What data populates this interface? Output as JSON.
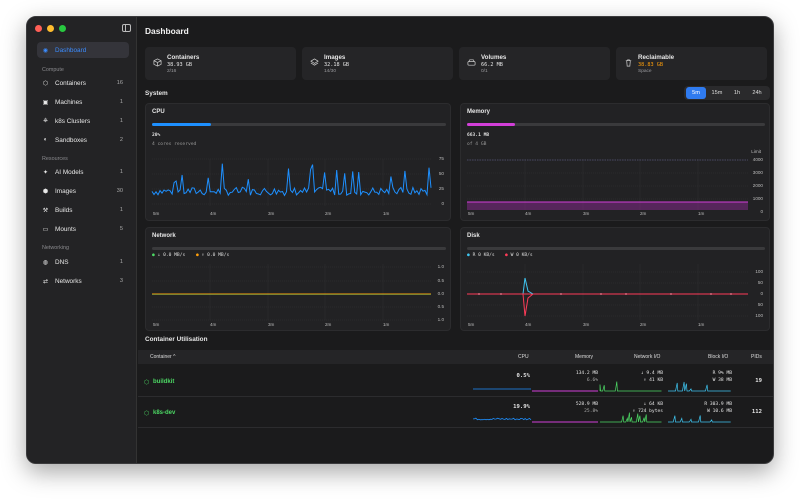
{
  "window": {
    "title": "Dashboard"
  },
  "sidebar": {
    "active": {
      "label": "Dashboard"
    },
    "sections": {
      "compute": "Compute",
      "resources": "Resources",
      "networking": "Networking"
    },
    "items": [
      {
        "label": "Containers",
        "count": "16",
        "icon": "cube-icon"
      },
      {
        "label": "Machines",
        "count": "1",
        "icon": "machine-icon"
      },
      {
        "label": "k8s Clusters",
        "count": "1",
        "icon": "cluster-icon"
      },
      {
        "label": "Sandboxes",
        "count": "2",
        "icon": "sandbox-icon"
      },
      {
        "label": "AI Models",
        "count": "1",
        "icon": "sparkle-icon"
      },
      {
        "label": "Images",
        "count": "30",
        "icon": "images-icon"
      },
      {
        "label": "Builds",
        "count": "1",
        "icon": "hammer-icon"
      },
      {
        "label": "Mounts",
        "count": "5",
        "icon": "drive-icon"
      },
      {
        "label": "DNS",
        "count": "1",
        "icon": "globe-icon"
      },
      {
        "label": "Networks",
        "count": "3",
        "icon": "network-icon"
      }
    ]
  },
  "stats": [
    {
      "title": "Containers",
      "value": "38.93 GB",
      "sub": "2/16",
      "icon": "cube-icon",
      "value_color": "#e6e6e6"
    },
    {
      "title": "Images",
      "value": "32.18 GB",
      "sub": "14/30",
      "icon": "layers-icon",
      "value_color": "#e6e6e6"
    },
    {
      "title": "Volumes",
      "value": "66.2 MB",
      "sub": "0/1",
      "icon": "drive-icon",
      "value_color": "#e6e6e6"
    },
    {
      "title": "Reclaimable",
      "value": "38.83 GB",
      "sub": "Space",
      "icon": "trash-icon",
      "value_color": "#ff9f0a"
    }
  ],
  "system": {
    "label": "System",
    "ranges": [
      "5m",
      "15m",
      "1h",
      "24h"
    ],
    "active_range": "5m"
  },
  "time_ticks": [
    "5m",
    "4m",
    "3m",
    "2m",
    "1m"
  ],
  "cpu": {
    "title": "CPU",
    "percent_label": "20%",
    "sub": "4 cores reserved",
    "usage_fraction": 0.2,
    "color": "#1e90ff",
    "y_ticks": [
      "75",
      "50",
      "25",
      "0"
    ]
  },
  "memory": {
    "title": "Memory",
    "value": "663.1 MB",
    "sub": "of 4 GB",
    "usage_fraction": 0.16,
    "color": "#d23fd8",
    "limit_label": "Limit",
    "y_ticks": [
      "4000",
      "3000",
      "2000",
      "1000",
      "0"
    ]
  },
  "network": {
    "title": "Network",
    "down": "↓ 0.0 MB/s",
    "up": "↑ 0.0 MB/s",
    "down_color": "#4cd964",
    "up_color": "#ff9f0a",
    "y_ticks": [
      "1.0",
      "0.5",
      "0.0",
      "0.5",
      "1.0"
    ]
  },
  "disk": {
    "title": "Disk",
    "read": "R 0 KB/s",
    "write": "W 0 KB/s",
    "read_color": "#3ec5f0",
    "write_color": "#ff3b58",
    "y_ticks": [
      "100",
      "50",
      "0",
      "50",
      "100"
    ]
  },
  "table": {
    "title": "Container Utilisation",
    "headers": {
      "container": "Container ^",
      "cpu": "CPU",
      "memory": "Memory",
      "network": "Network I/O",
      "block": "Block I/O",
      "pids": "PIDs"
    },
    "rows": [
      {
        "name": "buildkit",
        "cpu": "0.5%",
        "mem": "134.2 MB",
        "mem_pct": "6.6%",
        "net_down": "↓ 9.4 MB",
        "net_up": "↑ 41 KB",
        "blk_r": "R 9% MB",
        "blk_w": "W 38 MB",
        "pids": "19"
      },
      {
        "name": "k8s-dev",
        "cpu": "19.9%",
        "mem": "528.9 MB",
        "mem_pct": "25.8%",
        "net_down": "↓ 64 KB",
        "net_up": "↑ 724 bytes",
        "blk_r": "R 303.9 MB",
        "blk_w": "W 10.6 MB",
        "pids": "112"
      }
    ]
  }
}
